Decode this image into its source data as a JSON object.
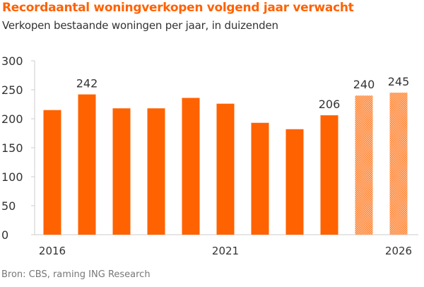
{
  "chart_data": {
    "type": "bar",
    "title": "Recordaantal woningverkopen volgend jaar verwacht",
    "subtitle": "Verkopen bestaande woningen per jaar, in duizenden",
    "source": "Bron: CBS, raming ING Research",
    "categories": [
      "2016",
      "2017",
      "2018",
      "2019",
      "2020",
      "2021",
      "2022",
      "2023",
      "2024",
      "2025",
      "2026"
    ],
    "values": [
      215,
      242,
      218,
      218,
      236,
      226,
      193,
      182,
      206,
      240,
      245
    ],
    "forecast": [
      false,
      false,
      false,
      false,
      false,
      false,
      false,
      false,
      false,
      true,
      true
    ],
    "data_labels": {
      "1": "242",
      "8": "206",
      "9": "240",
      "10": "245"
    },
    "x_tick_labels": {
      "0": "2016",
      "5": "2021",
      "10": "2026"
    },
    "y_ticks": [
      "0",
      "50",
      "100",
      "150",
      "200",
      "250",
      "300"
    ],
    "ylim": [
      0,
      300
    ],
    "grid": false,
    "colors": {
      "bar": "#ff6200",
      "forecast": "#ff6200",
      "title": "#ff6200"
    }
  }
}
